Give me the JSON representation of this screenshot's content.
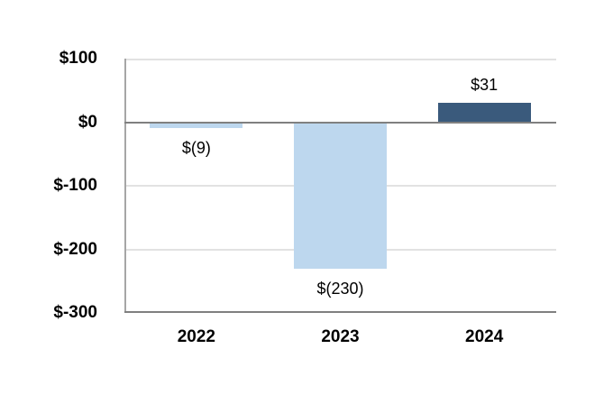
{
  "chart_data": {
    "type": "bar",
    "title": "",
    "categories": [
      "2022",
      "2023",
      "2024"
    ],
    "values": [
      -9,
      -230,
      31
    ],
    "data_labels": [
      "$(9)",
      "$(230)",
      "$31"
    ],
    "y_ticks": [
      {
        "label": "$100",
        "value": 100,
        "strong": false
      },
      {
        "label": "$0",
        "value": 0,
        "strong": true
      },
      {
        "label": "$-100",
        "value": -100,
        "strong": false
      },
      {
        "label": "$-200",
        "value": -200,
        "strong": false
      },
      {
        "label": "$-300",
        "value": -300,
        "strong": true
      }
    ],
    "ylim": [
      -300,
      100
    ],
    "grid": true,
    "legend": false,
    "bar_colors": [
      "#BDD7EE",
      "#BDD7EE",
      "#3A5A7C"
    ],
    "gridline_color": "#E2E2E2",
    "strong_line_color": "#808080",
    "axis_line_color": "#A6A6A6",
    "label_color": "#000000",
    "background": "#FFFFFF"
  }
}
